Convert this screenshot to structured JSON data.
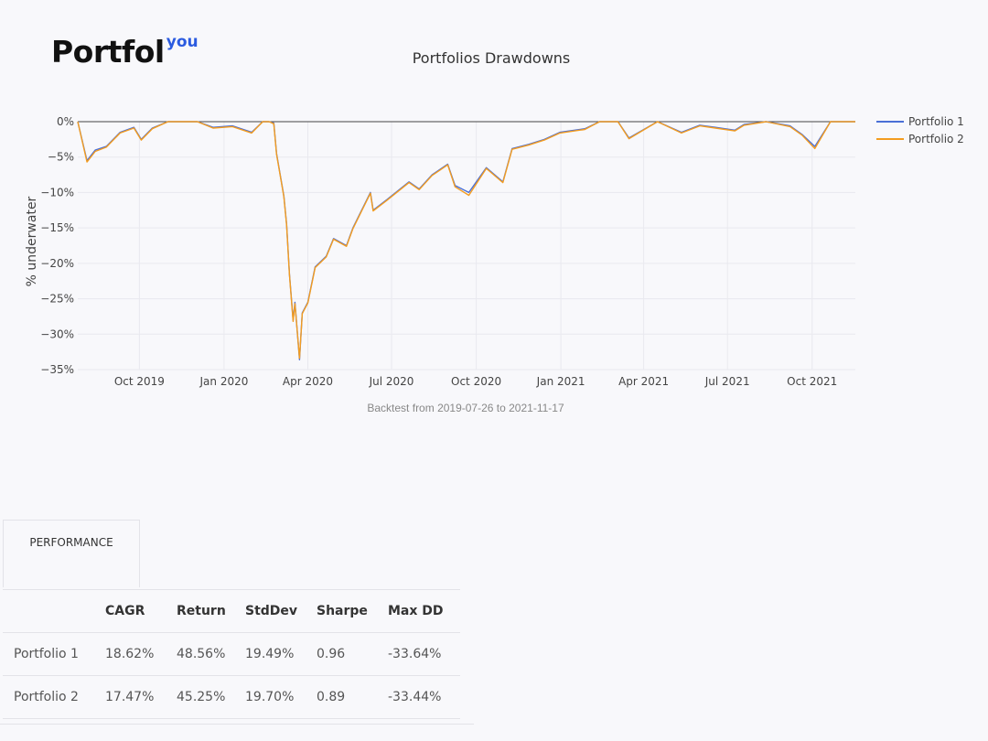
{
  "logo": {
    "main": "Portfol",
    "sup": "you"
  },
  "chart_data": {
    "type": "line",
    "title": "Portfolios Drawdowns",
    "ylabel": "% underwater",
    "xlabel": "",
    "caption": "Backtest from 2019-07-26 to 2021-11-17",
    "xlim": [
      "2019-07-26",
      "2021-11-17"
    ],
    "ylim": [
      -35,
      0
    ],
    "yticks": [
      0,
      -5,
      -10,
      -15,
      -20,
      -25,
      -30,
      -35
    ],
    "ytick_labels": [
      "0%",
      "−5%",
      "−10%",
      "−15%",
      "−20%",
      "−25%",
      "−30%",
      "−35%"
    ],
    "xticks": [
      "2019-10-01",
      "2020-01-01",
      "2020-04-01",
      "2020-07-01",
      "2020-10-01",
      "2021-01-01",
      "2021-04-01",
      "2021-07-01",
      "2021-10-01"
    ],
    "xtick_labels": [
      "Oct 2019",
      "Jan 2020",
      "Apr 2020",
      "Jul 2020",
      "Oct 2020",
      "Jan 2021",
      "Apr 2021",
      "Jul 2021",
      "Oct 2021"
    ],
    "grid": true,
    "legend_position": "top-right",
    "x": [
      "2019-07-26",
      "2019-08-05",
      "2019-08-14",
      "2019-08-26",
      "2019-09-10",
      "2019-09-25",
      "2019-10-03",
      "2019-10-15",
      "2019-11-01",
      "2019-12-03",
      "2019-12-20",
      "2020-01-10",
      "2020-01-31",
      "2020-02-12",
      "2020-02-19",
      "2020-02-24",
      "2020-02-27",
      "2020-03-02",
      "2020-03-06",
      "2020-03-09",
      "2020-03-12",
      "2020-03-16",
      "2020-03-18",
      "2020-03-23",
      "2020-03-26",
      "2020-04-01",
      "2020-04-09",
      "2020-04-21",
      "2020-04-29",
      "2020-05-13",
      "2020-05-20",
      "2020-06-08",
      "2020-06-11",
      "2020-06-26",
      "2020-07-20",
      "2020-07-31",
      "2020-08-14",
      "2020-08-31",
      "2020-09-08",
      "2020-09-23",
      "2020-10-12",
      "2020-10-30",
      "2020-11-09",
      "2020-11-27",
      "2020-12-14",
      "2020-12-31",
      "2021-01-27",
      "2021-02-12",
      "2021-03-04",
      "2021-03-16",
      "2021-04-16",
      "2021-05-12",
      "2021-06-01",
      "2021-06-18",
      "2021-07-09",
      "2021-07-19",
      "2021-08-12",
      "2021-09-07",
      "2021-09-20",
      "2021-10-04",
      "2021-10-21",
      "2021-11-17"
    ],
    "series": [
      {
        "name": "Portfolio 1",
        "color": "#4a6fd6",
        "values": [
          0,
          -5.5,
          -4.0,
          -3.5,
          -1.5,
          -0.8,
          -2.5,
          -0.9,
          0,
          0,
          -0.8,
          -0.6,
          -1.5,
          0,
          0,
          -0.2,
          -4.5,
          -7.5,
          -10.5,
          -14.5,
          -21.5,
          -28.0,
          -25.5,
          -33.6,
          -27.0,
          -25.5,
          -20.5,
          -19.0,
          -16.5,
          -17.5,
          -15.0,
          -10.0,
          -12.5,
          -11.0,
          -8.5,
          -9.5,
          -7.5,
          -6.0,
          -9.0,
          -10.0,
          -6.5,
          -8.5,
          -3.8,
          -3.2,
          -2.5,
          -1.5,
          -1.0,
          0,
          0,
          -2.3,
          0,
          -1.5,
          -0.5,
          -0.8,
          -1.2,
          -0.4,
          0,
          -0.6,
          -1.8,
          -3.5,
          0,
          0
        ]
      },
      {
        "name": "Portfolio 2",
        "color": "#f39c1f",
        "values": [
          0,
          -5.7,
          -4.2,
          -3.6,
          -1.6,
          -0.9,
          -2.6,
          -1.0,
          0,
          0,
          -0.9,
          -0.7,
          -1.6,
          0,
          0,
          -0.3,
          -4.6,
          -7.6,
          -10.6,
          -14.6,
          -21.6,
          -28.2,
          -25.7,
          -33.4,
          -27.1,
          -25.6,
          -20.6,
          -19.1,
          -16.6,
          -17.6,
          -15.1,
          -10.1,
          -12.6,
          -11.1,
          -8.6,
          -9.6,
          -7.6,
          -6.1,
          -9.2,
          -10.4,
          -6.6,
          -8.6,
          -3.9,
          -3.3,
          -2.6,
          -1.6,
          -1.1,
          0,
          0,
          -2.4,
          0,
          -1.6,
          -0.6,
          -0.9,
          -1.3,
          -0.5,
          0,
          -0.7,
          -1.9,
          -3.8,
          0,
          0
        ]
      }
    ]
  },
  "tabs": [
    {
      "label": "PERFORMANCE"
    }
  ],
  "table": {
    "headers": [
      "",
      "CAGR",
      "Return",
      "StdDev",
      "Sharpe",
      "Max DD"
    ],
    "rows": [
      [
        "Portfolio 1",
        "18.62%",
        "48.56%",
        "19.49%",
        "0.96",
        "-33.64%"
      ],
      [
        "Portfolio 2",
        "17.47%",
        "45.25%",
        "19.70%",
        "0.89",
        "-33.44%"
      ]
    ]
  }
}
